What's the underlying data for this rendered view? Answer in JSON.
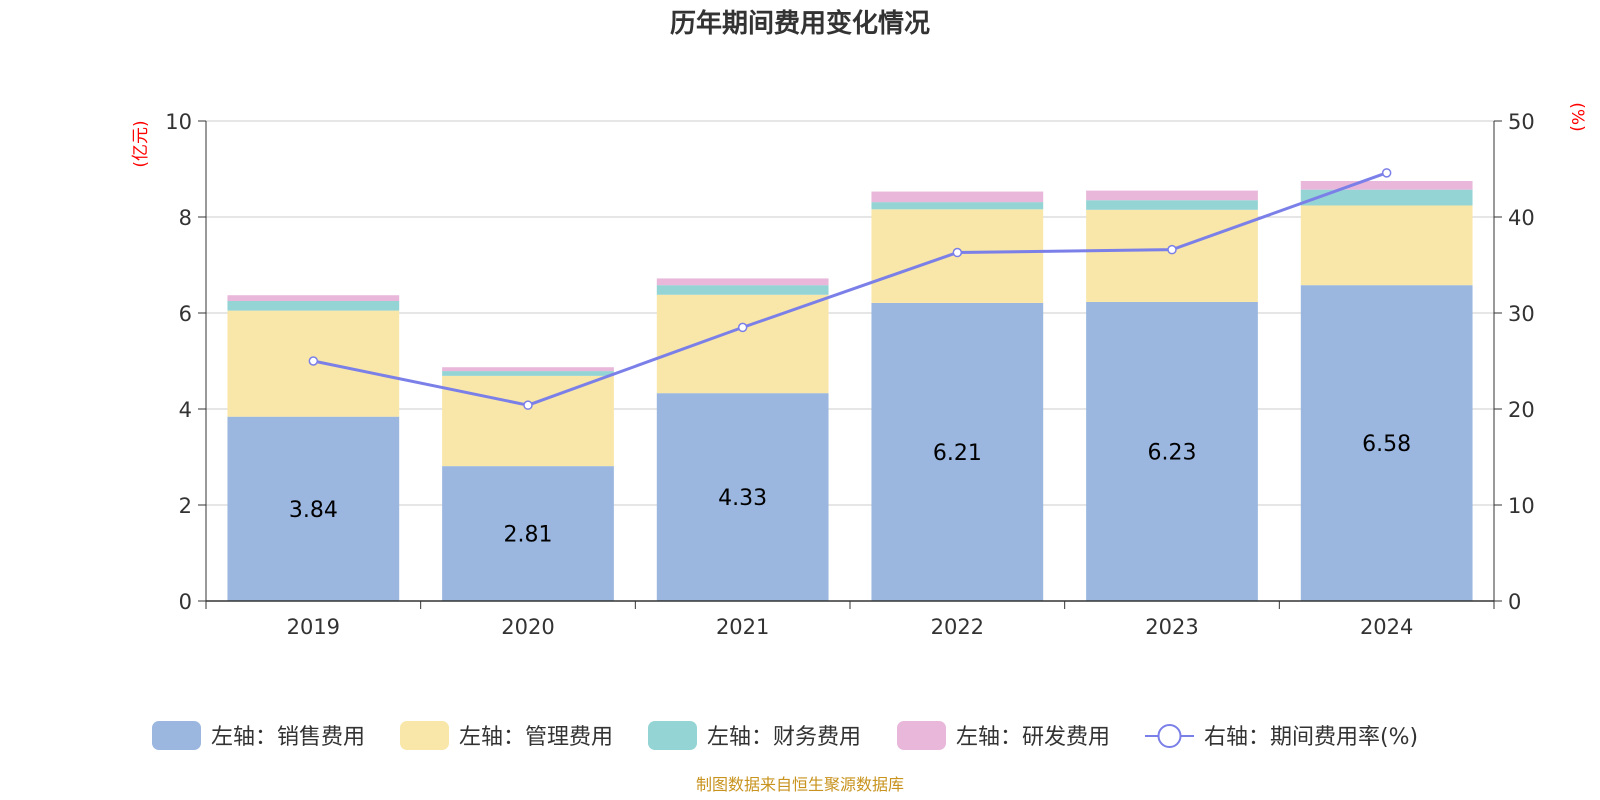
{
  "chart_data": {
    "type": "bar",
    "stacked": true,
    "title": "历年期间费用变化情况",
    "categories": [
      "2019",
      "2020",
      "2021",
      "2022",
      "2023",
      "2024"
    ],
    "y_left": {
      "unit": "(亿元)",
      "min": 0,
      "max": 10,
      "ticks": [
        0,
        2,
        4,
        6,
        8,
        10
      ]
    },
    "y_right": {
      "unit": "(%)",
      "min": 0,
      "max": 50,
      "ticks": [
        0,
        10,
        20,
        30,
        40,
        50
      ]
    },
    "series": [
      {
        "name": "左轴：销售费用",
        "axis": "left",
        "type": "bar",
        "color": "#9bb7e0",
        "values": [
          3.84,
          2.81,
          4.33,
          6.21,
          6.23,
          6.58
        ],
        "labels": [
          "3.84",
          "2.81",
          "4.33",
          "6.21",
          "6.23",
          "6.58"
        ]
      },
      {
        "name": "左轴：管理费用",
        "axis": "left",
        "type": "bar",
        "color": "#f8e7a8",
        "values": [
          2.21,
          1.88,
          2.05,
          1.95,
          1.92,
          1.66
        ]
      },
      {
        "name": "左轴：财务费用",
        "axis": "left",
        "type": "bar",
        "color": "#95d4d4",
        "values": [
          0.2,
          0.1,
          0.2,
          0.15,
          0.2,
          0.33
        ]
      },
      {
        "name": "左轴：研发费用",
        "axis": "left",
        "type": "bar",
        "color": "#e8b7d9",
        "values": [
          0.12,
          0.08,
          0.14,
          0.22,
          0.2,
          0.18
        ]
      },
      {
        "name": "右轴：期间费用率(%)",
        "axis": "right",
        "type": "line",
        "color": "#7b7fe8",
        "values": [
          25.0,
          20.4,
          28.5,
          36.3,
          36.6,
          44.6
        ]
      }
    ],
    "legend_position": "bottom",
    "grid": true
  },
  "source": "制图数据来自恒生聚源数据库"
}
